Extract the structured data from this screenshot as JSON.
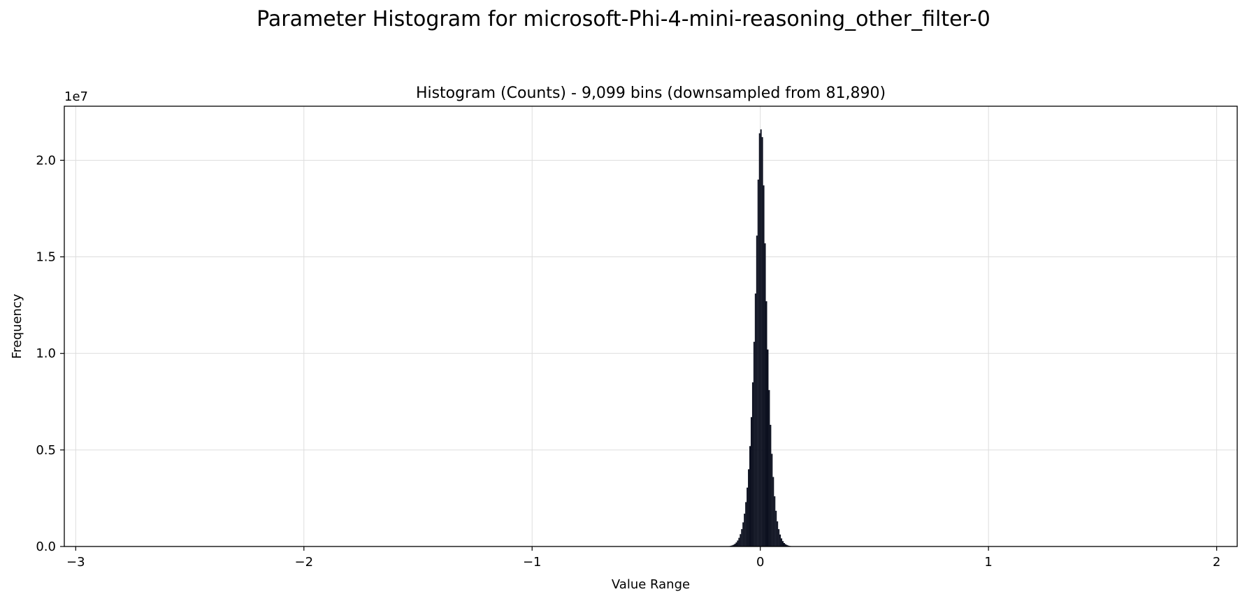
{
  "figure": {
    "title": "Parameter Histogram for microsoft-Phi-4-mini-reasoning_other_filter-0"
  },
  "chart_data": {
    "type": "bar",
    "title": "Histogram (Counts) - 9,099 bins (downsampled from 81,890)",
    "xlabel": "Value Range",
    "ylabel": "Frequency",
    "y_scale_label": "1e7",
    "xlim": [
      -3.05,
      2.09
    ],
    "ylim": [
      0,
      22800000
    ],
    "x_ticks": [
      -3,
      -2,
      -1,
      0,
      1,
      2
    ],
    "x_tick_labels": [
      "−3",
      "−2",
      "−1",
      "0",
      "1",
      "2"
    ],
    "y_ticks": [
      0,
      5000000,
      10000000,
      15000000,
      20000000
    ],
    "y_tick_labels": [
      "0.0",
      "0.5",
      "1.0",
      "1.5",
      "2.0"
    ],
    "grid": true,
    "bar_color": "#0b0f1e",
    "bin_range": [
      -0.15,
      0.15
    ],
    "bin_width": 0.006,
    "bins": [
      {
        "x": -0.147,
        "y": 0
      },
      {
        "x": -0.141,
        "y": 10000
      },
      {
        "x": -0.135,
        "y": 20000
      },
      {
        "x": -0.129,
        "y": 40000
      },
      {
        "x": -0.123,
        "y": 60000
      },
      {
        "x": -0.117,
        "y": 90000
      },
      {
        "x": -0.111,
        "y": 140000
      },
      {
        "x": -0.105,
        "y": 210000
      },
      {
        "x": -0.099,
        "y": 310000
      },
      {
        "x": -0.093,
        "y": 450000
      },
      {
        "x": -0.087,
        "y": 640000
      },
      {
        "x": -0.081,
        "y": 900000
      },
      {
        "x": -0.075,
        "y": 1250000
      },
      {
        "x": -0.069,
        "y": 1700000
      },
      {
        "x": -0.063,
        "y": 2300000
      },
      {
        "x": -0.057,
        "y": 3050000
      },
      {
        "x": -0.051,
        "y": 4000000
      },
      {
        "x": -0.045,
        "y": 5200000
      },
      {
        "x": -0.039,
        "y": 6700000
      },
      {
        "x": -0.033,
        "y": 8500000
      },
      {
        "x": -0.027,
        "y": 10600000
      },
      {
        "x": -0.021,
        "y": 13100000
      },
      {
        "x": -0.015,
        "y": 16100000
      },
      {
        "x": -0.009,
        "y": 19000000
      },
      {
        "x": -0.003,
        "y": 21400000
      },
      {
        "x": 0.003,
        "y": 21600000
      },
      {
        "x": 0.009,
        "y": 21200000
      },
      {
        "x": 0.015,
        "y": 18700000
      },
      {
        "x": 0.021,
        "y": 15700000
      },
      {
        "x": 0.027,
        "y": 12700000
      },
      {
        "x": 0.033,
        "y": 10200000
      },
      {
        "x": 0.039,
        "y": 8100000
      },
      {
        "x": 0.045,
        "y": 6300000
      },
      {
        "x": 0.051,
        "y": 4800000
      },
      {
        "x": 0.057,
        "y": 3600000
      },
      {
        "x": 0.063,
        "y": 2600000
      },
      {
        "x": 0.069,
        "y": 1850000
      },
      {
        "x": 0.075,
        "y": 1300000
      },
      {
        "x": 0.081,
        "y": 900000
      },
      {
        "x": 0.087,
        "y": 620000
      },
      {
        "x": 0.093,
        "y": 420000
      },
      {
        "x": 0.099,
        "y": 280000
      },
      {
        "x": 0.105,
        "y": 180000
      },
      {
        "x": 0.111,
        "y": 120000
      },
      {
        "x": 0.117,
        "y": 80000
      },
      {
        "x": 0.123,
        "y": 50000
      },
      {
        "x": 0.129,
        "y": 30000
      },
      {
        "x": 0.135,
        "y": 20000
      },
      {
        "x": 0.141,
        "y": 10000
      },
      {
        "x": 0.147,
        "y": 0
      }
    ]
  }
}
